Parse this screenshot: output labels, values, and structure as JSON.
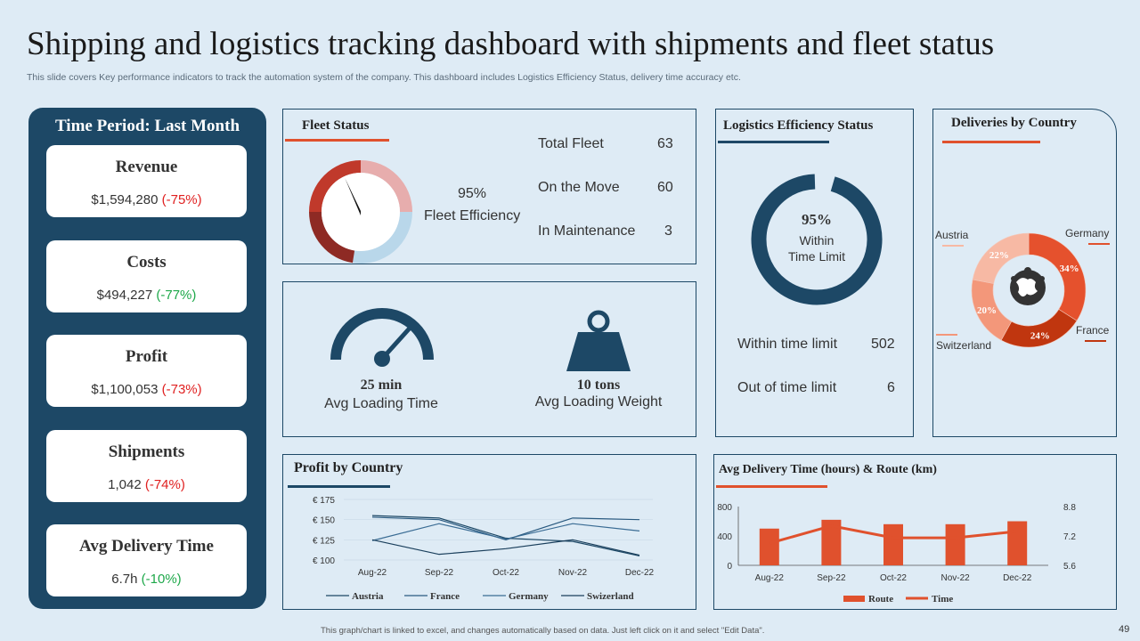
{
  "title": "Shipping and logistics tracking dashboard with shipments and fleet status",
  "subtitle": "This slide covers Key performance indicators to track the automation system of the company. This dashboard includes Logistics Efficiency Status, delivery time accuracy etc.",
  "footer": "This graph/chart is linked to excel, and changes automatically based on data. Just left click on it and select \"Edit Data\".",
  "page_number": "49",
  "colors": {
    "navy": "#1d4866",
    "accent": "#e0512d",
    "red": "#e02020",
    "green": "#1ea84a"
  },
  "sidebar": {
    "title": "Time Period: Last Month",
    "kpis": [
      {
        "label": "Revenue",
        "value": "$1,594,280",
        "change": "(-75%)",
        "trend": "neg"
      },
      {
        "label": "Costs",
        "value": "$494,227",
        "change": "(-77%)",
        "trend": "pos"
      },
      {
        "label": "Profit",
        "value": "$1,100,053",
        "change": "(-73%)",
        "trend": "neg"
      },
      {
        "label": "Shipments",
        "value": "1,042",
        "change": "(-74%)",
        "trend": "neg"
      },
      {
        "label": "Avg Delivery  Time",
        "value": "6.7h",
        "change": "(-10%)",
        "trend": "pos"
      }
    ]
  },
  "fleet": {
    "title": "Fleet Status",
    "efficiency_pct": "95%",
    "efficiency_label": "Fleet Efficiency",
    "gauge_value": 95,
    "rows": [
      {
        "label": "Total Fleet",
        "value": "63"
      },
      {
        "label": "On the Move",
        "value": "60"
      },
      {
        "label": "In Maintenance",
        "value": "3"
      }
    ]
  },
  "loading": {
    "time_value": "25 min",
    "time_label": "Avg Loading Time",
    "weight_value": "10 tons",
    "weight_label": "Avg Loading Weight"
  },
  "logistics": {
    "title": "Logistics Efficiency  Status",
    "pct": "95%",
    "ring_value": 95,
    "center_line1": "Within",
    "center_line2": "Time Limit",
    "rows": [
      {
        "label": "Within time limit",
        "value": "502"
      },
      {
        "label": "Out of time limit",
        "value": "6"
      }
    ]
  },
  "deliveries": {
    "title": "Deliveries by Country",
    "countries": [
      "Germany",
      "France",
      "Switzerland",
      "Austria"
    ]
  },
  "profit": {
    "title": "Profit by Country"
  },
  "avgdel": {
    "title": "Avg Delivery Time (hours)  & Route (km)"
  },
  "chart_data": [
    {
      "type": "pie",
      "title": "Deliveries by Country",
      "labels": [
        "Germany",
        "France",
        "Switzerland",
        "Austria"
      ],
      "values": [
        34,
        24,
        20,
        22
      ],
      "value_labels": [
        "34%",
        "24%",
        "20%",
        "22%"
      ],
      "colors": [
        "#e5512d",
        "#c0360f",
        "#f3977a",
        "#f7b9a4"
      ]
    },
    {
      "type": "line",
      "title": "Profit by Country",
      "categories": [
        "Aug-22",
        "Sep-22",
        "Oct-22",
        "Nov-22",
        "Dec-22"
      ],
      "yticks": [
        "€ 175",
        "€ 150",
        "€ 125",
        "€ 100"
      ],
      "ylim": [
        100,
        175
      ],
      "series": [
        {
          "name": "Austria",
          "values": [
            155,
            152,
            127,
            123,
            105
          ]
        },
        {
          "name": "France",
          "values": [
            153,
            150,
            125,
            152,
            150
          ]
        },
        {
          "name": "Germany",
          "values": [
            124,
            145,
            126,
            145,
            136
          ]
        },
        {
          "name": "Swizerland",
          "values": [
            125,
            107,
            114,
            125,
            106
          ]
        }
      ]
    },
    {
      "type": "bar",
      "title": "Avg Delivery Time (hours)  & Route (km)",
      "categories": [
        "Aug-22",
        "Sep-22",
        "Oct-22",
        "Nov-22",
        "Dec-22"
      ],
      "yticks_left": [
        "800",
        "400",
        "0"
      ],
      "yticks_right": [
        "8.8",
        "7.2",
        "5.6"
      ],
      "ylim_left": [
        0,
        800
      ],
      "ylim_right": [
        5.6,
        8.8
      ],
      "series": [
        {
          "name": "Route",
          "kind": "bar",
          "values": [
            500,
            620,
            560,
            560,
            600
          ]
        },
        {
          "name": "Time",
          "kind": "line",
          "values": [
            6.8,
            7.75,
            7.1,
            7.1,
            7.45
          ]
        }
      ]
    }
  ]
}
